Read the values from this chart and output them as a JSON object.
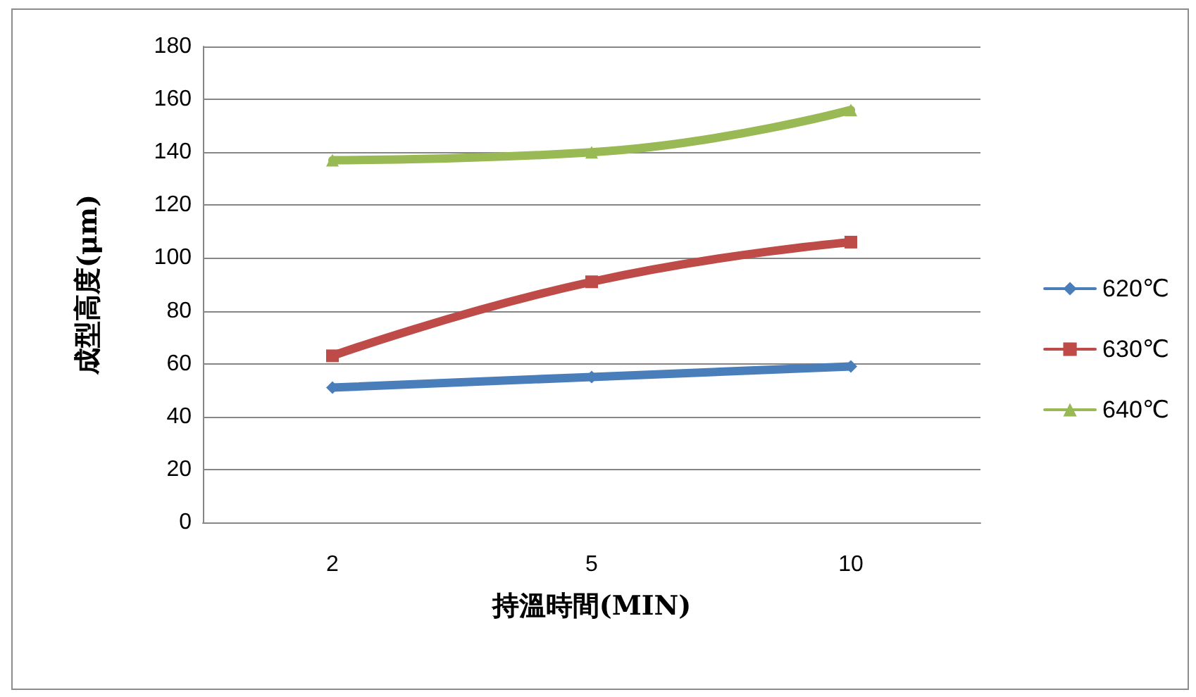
{
  "chart_data": {
    "type": "line",
    "xlabel": "持溫時間(MIN)",
    "ylabel": "成型高度(μm)",
    "categories": [
      "2",
      "5",
      "10"
    ],
    "series": [
      {
        "name": "620℃",
        "color": "#4a7ebb",
        "marker": "diamond",
        "values": [
          51,
          55,
          59
        ]
      },
      {
        "name": "630℃",
        "color": "#be4b48",
        "marker": "square",
        "values": [
          63,
          91,
          106
        ]
      },
      {
        "name": "640℃",
        "color": "#98b954",
        "marker": "triangle",
        "values": [
          137,
          140,
          156
        ]
      }
    ],
    "ylim": [
      0,
      180
    ],
    "yticks": [
      0,
      20,
      40,
      60,
      80,
      100,
      120,
      140,
      160,
      180
    ],
    "grid": "y",
    "legend": "right"
  }
}
